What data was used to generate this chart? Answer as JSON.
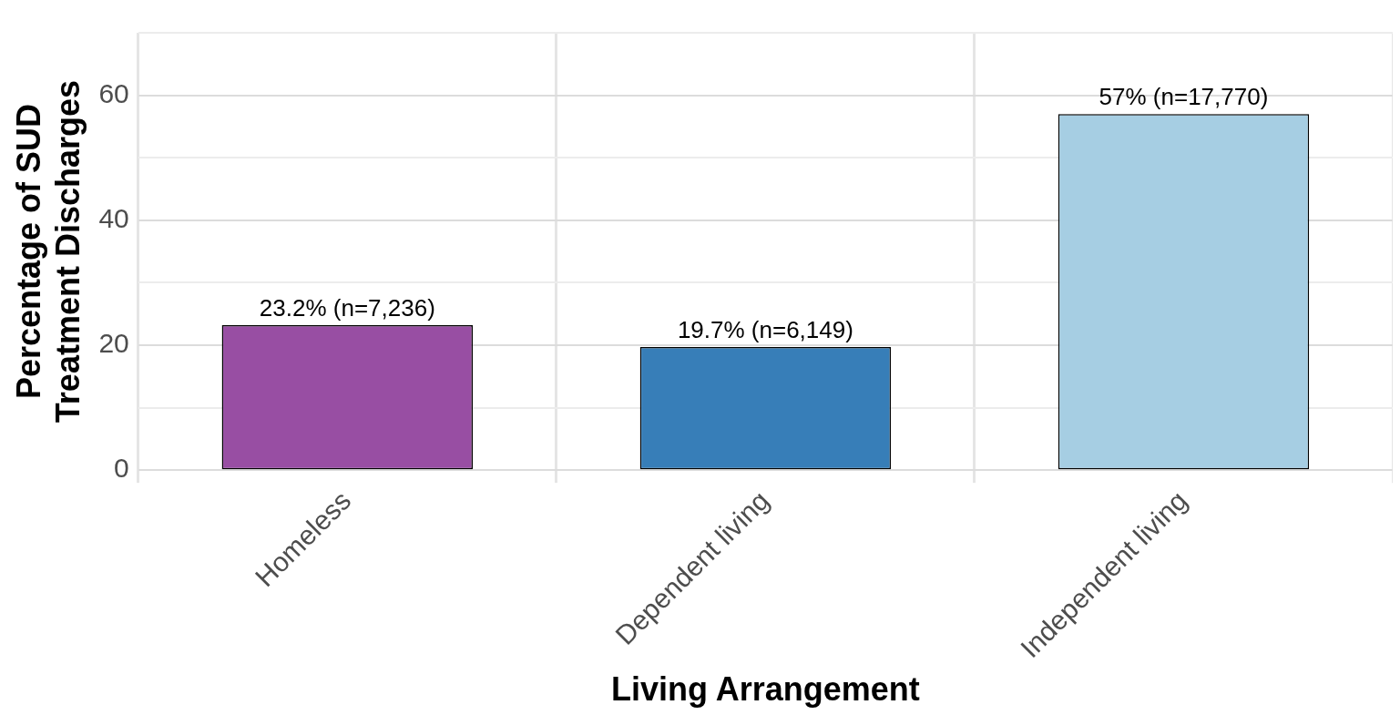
{
  "chart_data": {
    "type": "bar",
    "xlabel": "Living Arrangement",
    "ylabel": "Percentage of SUD\nTreatment Discharges",
    "categories": [
      "Homeless",
      "Dependent living",
      "Independent living"
    ],
    "values": [
      23.2,
      19.7,
      57
    ],
    "colors": [
      "#984ea3",
      "#377eb8",
      "#a6cee3"
    ],
    "value_labels": [
      "23.2% (n=7,236)",
      "19.7% (n=6,149)",
      "57% (n=17,770)"
    ],
    "ylim": [
      0,
      70
    ],
    "yticks": [
      0,
      {
        "value": 10,
        "label": null
      },
      20,
      {
        "value": 30,
        "label": null
      },
      40,
      {
        "value": 50,
        "label": null
      },
      60,
      {
        "value": 70,
        "label": null
      }
    ],
    "grid": true,
    "legend": false
  }
}
